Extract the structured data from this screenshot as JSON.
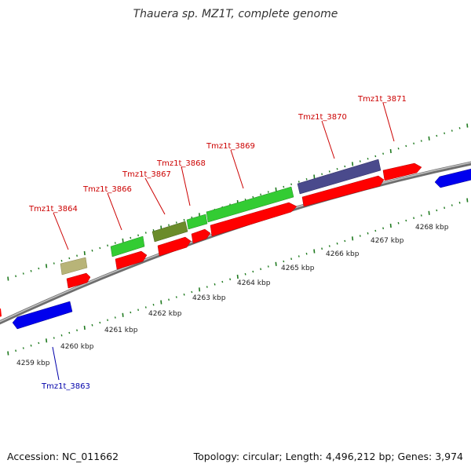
{
  "title": "Thauera sp. MZ1T, complete genome",
  "footer": {
    "accession": "Accession: NC_011662",
    "summary": "Topology: circular; Length: 4,496,212 bp; Genes: 3,974"
  },
  "colors": {
    "background": "#ffffff",
    "backbone": "#888888",
    "tick": "#1f7a1f",
    "label_forward": "#cc0000",
    "label_reverse": "#0000aa",
    "red_feature": "#ff0000",
    "green_feature": "#33cc33",
    "blue_feature": "#0000ee",
    "purple_feature": "#4a4a8c",
    "olive_feature": "#6b8c2a",
    "khaki_feature": "#b8b478"
  },
  "scale_labels": [
    "4259 kbp",
    "4260 kbp",
    "4261 kbp",
    "4262 kbp",
    "4263 kbp",
    "4264 kbp",
    "4265 kbp",
    "4266 kbp",
    "4267 kbp",
    "4268 kbp"
  ],
  "gene_labels": [
    "Tmz1t_3863",
    "Tmz1t_3864",
    "Tmz1t_3866",
    "Tmz1t_3867",
    "Tmz1t_3868",
    "Tmz1t_3869",
    "Tmz1t_3870",
    "Tmz1t_3871"
  ]
}
